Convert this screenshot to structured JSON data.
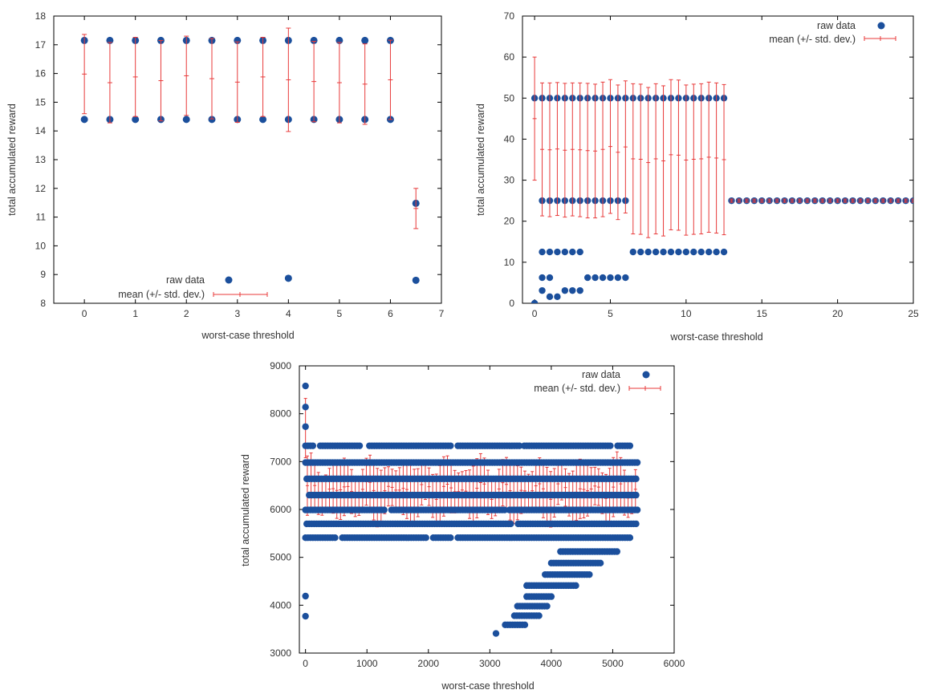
{
  "colors": {
    "raw": "#1b4f9c",
    "mean": "#e83a3a",
    "axis": "#000000",
    "text": "#333333"
  },
  "chart_data": [
    {
      "type": "scatter",
      "title": "",
      "xlabel": "worst-case threshold",
      "ylabel": "total accumulated reward",
      "xlim": [
        -0.6,
        7
      ],
      "ylim": [
        8,
        18
      ],
      "xticks": [
        0,
        1,
        2,
        3,
        4,
        5,
        6,
        7
      ],
      "yticks": [
        8,
        9,
        10,
        11,
        12,
        13,
        14,
        15,
        16,
        17,
        18
      ],
      "legend_position": "bottom-center",
      "legend": [
        "raw data",
        "mean (+/- std. dev.)"
      ],
      "raw": {
        "x": [
          0,
          0,
          0.5,
          0.5,
          1,
          1,
          1.5,
          1.5,
          2,
          2,
          2.5,
          2.5,
          3,
          3,
          3.5,
          3.5,
          4,
          4,
          4,
          4.5,
          4.5,
          5,
          5,
          5.5,
          5.5,
          6,
          6,
          6.5,
          6.5
        ],
        "y": [
          17.15,
          14.4,
          17.15,
          14.4,
          17.15,
          14.4,
          17.15,
          14.4,
          17.15,
          14.4,
          17.15,
          14.4,
          17.15,
          14.4,
          17.15,
          14.4,
          17.15,
          14.4,
          8.87,
          17.15,
          14.4,
          17.15,
          14.4,
          17.15,
          14.4,
          17.15,
          14.4,
          11.48,
          8.8
        ]
      },
      "mean": {
        "x": [
          0,
          0.5,
          1,
          1.5,
          2,
          2.5,
          3,
          3.5,
          4,
          4.5,
          5,
          5.5,
          6,
          6.5
        ],
        "y": [
          15.98,
          15.68,
          15.88,
          15.75,
          15.92,
          15.82,
          15.7,
          15.88,
          15.78,
          15.72,
          15.68,
          15.63,
          15.78,
          11.3
        ],
        "err": [
          1.38,
          1.4,
          1.38,
          1.4,
          1.38,
          1.4,
          1.4,
          1.38,
          1.8,
          1.4,
          1.4,
          1.4,
          1.38,
          0.7
        ]
      }
    },
    {
      "type": "scatter",
      "title": "",
      "xlabel": "worst-case threshold",
      "ylabel": "total accumulated reward",
      "xlim": [
        -0.8,
        25
      ],
      "ylim": [
        0,
        70
      ],
      "xticks": [
        0,
        5,
        10,
        15,
        20,
        25
      ],
      "yticks": [
        0,
        10,
        20,
        30,
        40,
        50,
        60,
        70
      ],
      "legend_position": "top-right",
      "legend": [
        "raw data",
        "mean (+/- std. dev.)"
      ],
      "raw_bands": [
        {
          "y": 50,
          "x_from": 0,
          "x_to": 12.5,
          "step": 0.5
        },
        {
          "y": 25,
          "x_from": 0.5,
          "x_to": 6,
          "step": 0.5
        },
        {
          "y": 25,
          "x_from": 13,
          "x_to": 25,
          "step": 0.5
        },
        {
          "y": 12.5,
          "x_from": 0.5,
          "x_to": 3,
          "step": 0.5
        },
        {
          "y": 12.5,
          "x_from": 6.5,
          "x_to": 12.5,
          "step": 0.5
        },
        {
          "y": 6.25,
          "x_from": 0.5,
          "x_to": 1,
          "step": 0.5
        },
        {
          "y": 6.25,
          "x_from": 3.5,
          "x_to": 6,
          "step": 0.5
        }
      ],
      "raw_extra": {
        "x": [
          0,
          0.5,
          1,
          1.5,
          2,
          2.5,
          3
        ],
        "y": [
          0,
          3.1,
          1.6,
          1.6,
          3.1,
          3.1,
          3.1
        ]
      },
      "mean": {
        "x": [
          0,
          0.5,
          1,
          1.5,
          2,
          2.5,
          3,
          3.5,
          4,
          4.5,
          5,
          5.5,
          6,
          6.5,
          7,
          7.5,
          8,
          8.5,
          9,
          9.5,
          10,
          10.5,
          11,
          11.5,
          12,
          12.5
        ],
        "y": [
          45,
          37.5,
          37.4,
          37.6,
          37.3,
          37.5,
          37.4,
          37.2,
          37.1,
          37.5,
          38.2,
          36.8,
          38.1,
          35.2,
          35.1,
          34.3,
          35.2,
          34.7,
          36.2,
          36.1,
          34.9,
          35.1,
          35.2,
          35.6,
          35.4,
          35
        ],
        "err": [
          15,
          16.2,
          16.3,
          16.2,
          16.3,
          16.2,
          16.3,
          16.4,
          16.3,
          16.4,
          16.3,
          16.4,
          16.1,
          18.3,
          18.3,
          18.3,
          18.3,
          18.3,
          18.3,
          18.3,
          18.3,
          18.3,
          18.3,
          18.3,
          18.3,
          18.3
        ]
      },
      "tail": {
        "x_from": 13,
        "x_to": 25,
        "step": 0.5,
        "y": 25
      }
    },
    {
      "type": "scatter",
      "title": "",
      "xlabel": "worst-case threshold",
      "ylabel": "total accumulated reward",
      "xlim": [
        -100,
        6000
      ],
      "ylim": [
        3000,
        9000
      ],
      "xticks": [
        0,
        1000,
        2000,
        3000,
        4000,
        5000,
        6000
      ],
      "yticks": [
        3000,
        4000,
        5000,
        6000,
        7000,
        8000,
        9000
      ],
      "legend_position": "top-right",
      "legend": [
        "raw data",
        "mean (+/- std. dev.)"
      ],
      "rows": [
        {
          "y": 7330,
          "x_from": 0,
          "x_to": 5300,
          "step": 40,
          "gaps": [
            [
              150,
              230
            ],
            [
              900,
              1000
            ],
            [
              2370,
              2450
            ],
            [
              3500,
              3550
            ],
            [
              5000,
              5060
            ]
          ]
        },
        {
          "y": 6980,
          "x_from": 0,
          "x_to": 5400,
          "step": 40,
          "gaps": []
        },
        {
          "y": 6640,
          "x_from": 20,
          "x_to": 5400,
          "step": 40,
          "gaps": []
        },
        {
          "y": 6300,
          "x_from": 60,
          "x_to": 5400,
          "step": 40,
          "gaps": []
        },
        {
          "y": 5990,
          "x_from": 0,
          "x_to": 5400,
          "step": 40,
          "gaps": [
            [
              1300,
              1380
            ],
            [
              3250,
              3310
            ]
          ]
        },
        {
          "y": 5700,
          "x_from": 20,
          "x_to": 5400,
          "step": 40,
          "gaps": [
            [
              3350,
              3430
            ]
          ]
        },
        {
          "y": 5410,
          "x_from": 0,
          "x_to": 5300,
          "step": 40,
          "gaps": [
            [
              500,
              560
            ],
            [
              2000,
              2060
            ],
            [
              2400,
              2440
            ]
          ]
        }
      ],
      "lower_rows": [
        {
          "y": 5120,
          "x_from": 4150,
          "x_to": 5100
        },
        {
          "y": 4880,
          "x_from": 4000,
          "x_to": 4800
        },
        {
          "y": 4640,
          "x_from": 3900,
          "x_to": 4650
        },
        {
          "y": 4410,
          "x_from": 3600,
          "x_to": 4400
        },
        {
          "y": 4180,
          "x_from": 3600,
          "x_to": 4000
        },
        {
          "y": 3980,
          "x_from": 3450,
          "x_to": 3950
        },
        {
          "y": 3780,
          "x_from": 3400,
          "x_to": 3800
        },
        {
          "y": 3590,
          "x_from": 3250,
          "x_to": 3600
        }
      ],
      "raw_extra": {
        "x": [
          0,
          0,
          0,
          0,
          0,
          3100
        ],
        "y": [
          8580,
          8140,
          7730,
          4190,
          3770,
          3410
        ]
      },
      "mean_band": {
        "x_from": 0,
        "x_to": 5400,
        "step": 60,
        "center": 6400,
        "amp": 200,
        "err": 500
      }
    }
  ]
}
